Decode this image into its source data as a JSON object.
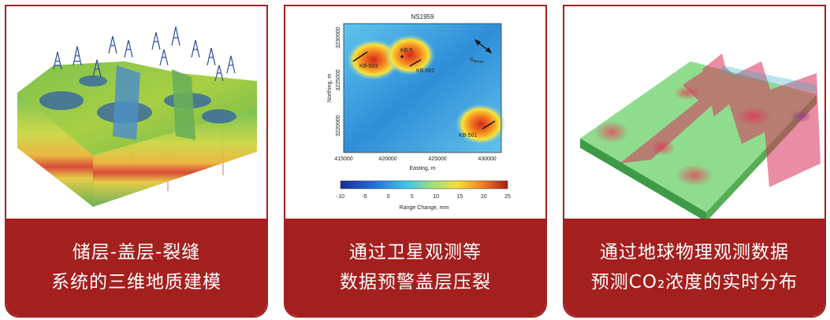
{
  "cards": [
    {
      "caption_line1": "储层-盖层-裂缝",
      "caption_line2": "系统的三维地质建模",
      "image_icon": "3d-geological-model"
    },
    {
      "caption_line1": "通过卫星观测等",
      "caption_line2": "数据预警盖层压裂",
      "image_icon": "satellite-insar-map",
      "map": {
        "title": "NS1959",
        "ylabel": "Northing, m",
        "xlabel": "Easting, m",
        "xticks": [
          "415000",
          "420000",
          "425000",
          "430000"
        ],
        "yticks": [
          "3230000",
          "3225000",
          "3220000"
        ],
        "wells": [
          "KB-503",
          "KB-5",
          "KB-502",
          "KB-501"
        ],
        "stress_label": "S",
        "stress_sub": "Hmax",
        "colorbar_ticks": [
          "-10",
          "-5",
          "0",
          "5",
          "10",
          "15",
          "20",
          "25"
        ],
        "colorbar_label": "Range Change, mm"
      }
    },
    {
      "caption_line1": "通过地球物理观测数据",
      "caption_line2": "预测CO₂浓度的实时分布",
      "image_icon": "3d-co2-plume-model"
    }
  ],
  "colors": {
    "accent": "#a3201f",
    "caption_text": "#ffffff"
  }
}
